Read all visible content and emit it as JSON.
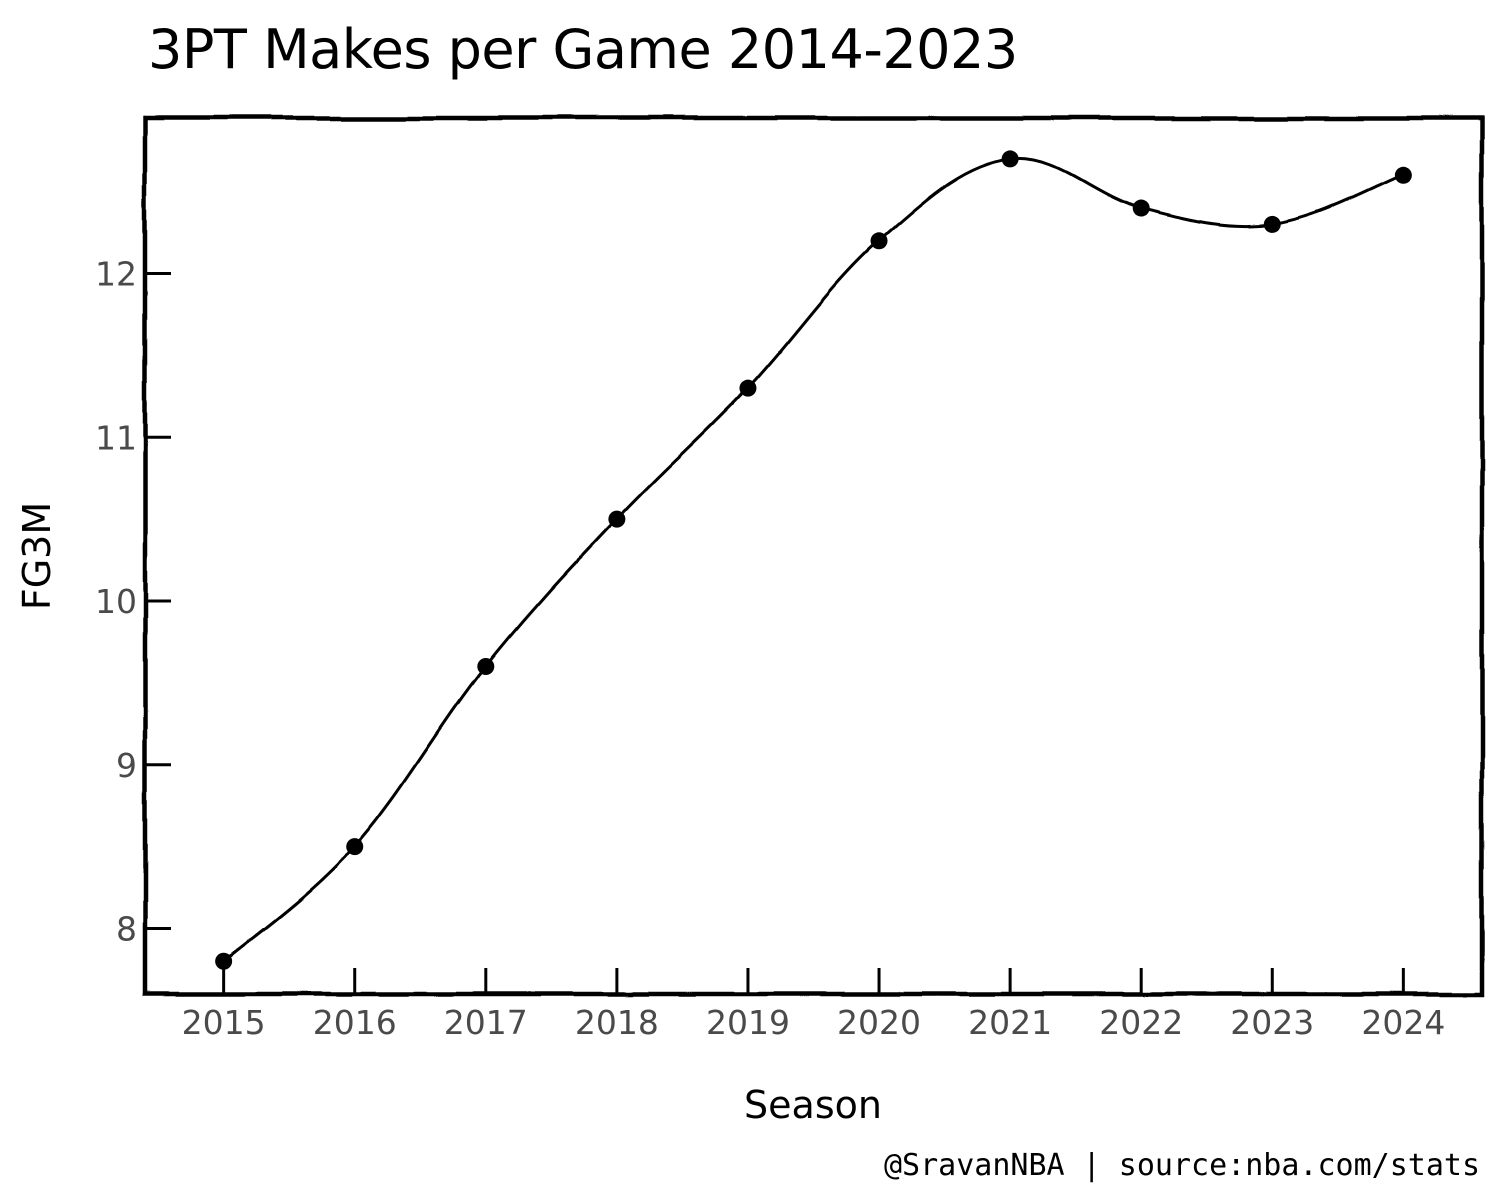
{
  "chart_data": {
    "type": "line",
    "title": "3PT Makes per Game 2014-2023",
    "xlabel": "Season",
    "ylabel": "FG3M",
    "credit": "@SravanNBA | source:nba.com/stats",
    "x": [
      2015,
      2016,
      2017,
      2018,
      2019,
      2020,
      2021,
      2022,
      2023,
      2024
    ],
    "series": [
      {
        "values": [
          7.8,
          8.5,
          9.6,
          10.5,
          11.3,
          12.2,
          12.7,
          12.4,
          12.3,
          12.6
        ],
        "color": "#000000",
        "marker": "circle"
      }
    ],
    "xticks": [
      "2015",
      "2016",
      "2017",
      "2018",
      "2019",
      "2020",
      "2021",
      "2022",
      "2023",
      "2024"
    ],
    "yticks": [
      "8",
      "9",
      "10",
      "11",
      "12"
    ],
    "ytick_values": [
      8,
      9,
      10,
      11,
      12
    ],
    "xlim": [
      2014.4,
      2024.6
    ],
    "ylim": [
      7.6,
      12.95
    ],
    "grid": false,
    "style": "xkcd"
  }
}
